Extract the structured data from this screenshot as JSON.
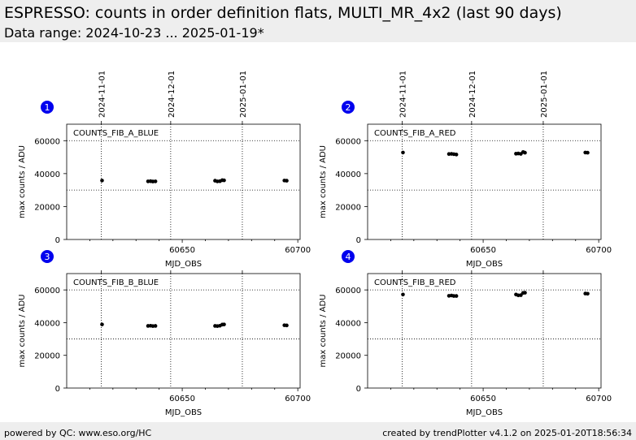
{
  "header": {
    "title": "ESPRESSO: counts in order definition flats, MULTI_MR_4x2 (last 90 days)",
    "subtitle": "Data range: 2024-10-23 ... 2025-01-19*"
  },
  "footer": {
    "left": "powered by QC: www.eso.org/HC",
    "right": "created by trendPlotter v4.1.2 on 2025-01-20T18:56:34"
  },
  "colors": {
    "marker": "#000000",
    "badge": "#0000ee",
    "header_bg": "#eeeeee"
  },
  "chart_data": [
    {
      "type": "scatter",
      "panel": "1",
      "label": "COUNTS_FIB_A_BLUE",
      "xlabel": "MJD_OBS",
      "ylabel": "max counts / ADU",
      "xlim": [
        60600,
        60701
      ],
      "ylim": [
        0,
        70000
      ],
      "xticks": [
        60650,
        60700
      ],
      "yticks": [
        0,
        20000,
        40000,
        60000
      ],
      "ref_lines": [
        30000,
        60000
      ],
      "date_ticks": [
        {
          "label": "2024-11-01",
          "mjd": 60615
        },
        {
          "label": "2024-12-01",
          "mjd": 60645
        },
        {
          "label": "2025-01-01",
          "mjd": 60676
        }
      ],
      "x": [
        60615.3,
        60635.2,
        60636.3,
        60637.3,
        60638.4,
        60664.2,
        60665.2,
        60666.3,
        60667.3,
        60668.1,
        60694.2,
        60695.2
      ],
      "y": [
        35800,
        35300,
        35400,
        35200,
        35300,
        35700,
        35300,
        35400,
        36000,
        35900,
        35800,
        35700
      ]
    },
    {
      "type": "scatter",
      "panel": "2",
      "label": "COUNTS_FIB_A_RED",
      "xlabel": "MJD_OBS",
      "ylabel": "max counts / ADU",
      "xlim": [
        60600,
        60701
      ],
      "ylim": [
        0,
        70000
      ],
      "xticks": [
        60650,
        60700
      ],
      "yticks": [
        0,
        20000,
        40000,
        60000
      ],
      "ref_lines": [
        30000,
        60000
      ],
      "date_ticks": [
        {
          "label": "2024-11-01",
          "mjd": 60615
        },
        {
          "label": "2024-12-01",
          "mjd": 60645
        },
        {
          "label": "2025-01-01",
          "mjd": 60676
        }
      ],
      "x": [
        60615.3,
        60635.2,
        60636.3,
        60637.3,
        60638.4,
        60664.2,
        60665.2,
        60666.3,
        60667.3,
        60668.1,
        60694.2,
        60695.2
      ],
      "y": [
        52800,
        51900,
        52000,
        51800,
        51600,
        52100,
        52200,
        52000,
        53100,
        52700,
        52800,
        52700
      ]
    },
    {
      "type": "scatter",
      "panel": "3",
      "label": "COUNTS_FIB_B_BLUE",
      "xlabel": "MJD_OBS",
      "ylabel": "max counts / ADU",
      "xlim": [
        60600,
        60701
      ],
      "ylim": [
        0,
        70000
      ],
      "xticks": [
        60650,
        60700
      ],
      "yticks": [
        0,
        20000,
        40000,
        60000
      ],
      "ref_lines": [
        30000,
        60000
      ],
      "date_ticks": [
        {
          "label": "2024-11-01",
          "mjd": 60615
        },
        {
          "label": "2024-12-01",
          "mjd": 60645
        },
        {
          "label": "2025-01-01",
          "mjd": 60676
        }
      ],
      "x": [
        60615.3,
        60635.2,
        60636.3,
        60637.3,
        60638.4,
        60664.2,
        60665.2,
        60666.3,
        60667.3,
        60668.1,
        60694.2,
        60695.2
      ],
      "y": [
        38900,
        38000,
        38100,
        37900,
        38000,
        38000,
        37900,
        38100,
        38800,
        38900,
        38400,
        38300
      ]
    },
    {
      "type": "scatter",
      "panel": "4",
      "label": "COUNTS_FIB_B_RED",
      "xlabel": "MJD_OBS",
      "ylabel": "max counts / ADU",
      "xlim": [
        60600,
        60701
      ],
      "ylim": [
        0,
        70000
      ],
      "xticks": [
        60650,
        60700
      ],
      "yticks": [
        0,
        20000,
        40000,
        60000
      ],
      "ref_lines": [
        30000,
        60000
      ],
      "date_ticks": [
        {
          "label": "2024-11-01",
          "mjd": 60615
        },
        {
          "label": "2024-12-01",
          "mjd": 60645
        },
        {
          "label": "2025-01-01",
          "mjd": 60676
        }
      ],
      "x": [
        60615.3,
        60635.2,
        60636.3,
        60637.3,
        60638.4,
        60664.2,
        60665.2,
        60666.3,
        60667.3,
        60668.1,
        60694.2,
        60695.2
      ],
      "y": [
        57200,
        56400,
        56600,
        56300,
        56300,
        57200,
        56700,
        56800,
        58200,
        58300,
        57800,
        57700
      ]
    }
  ]
}
